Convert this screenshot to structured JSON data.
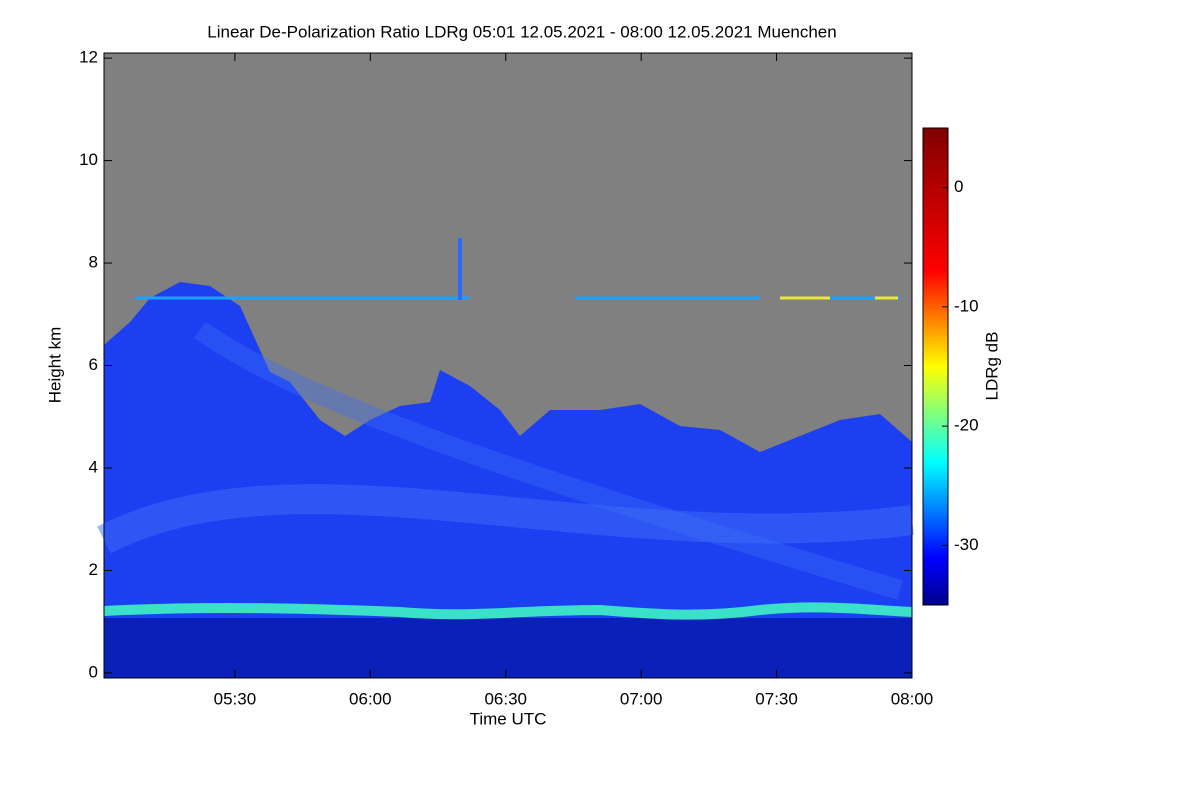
{
  "chart_data": {
    "type": "heatmap",
    "title": "Linear De-Polarization Ratio LDRg   05:01 12.05.2021 - 08:00 12.05.2021 Muenchen",
    "x_label": "Time UTC",
    "y_label": "Height km",
    "xlim": [
      5.0167,
      8.0
    ],
    "xticks": [
      {
        "value": 5.5,
        "label": "05:30"
      },
      {
        "value": 6.0,
        "label": "06:00"
      },
      {
        "value": 6.5,
        "label": "06:30"
      },
      {
        "value": 7.0,
        "label": "07:00"
      },
      {
        "value": 7.5,
        "label": "07:30"
      },
      {
        "value": 8.0,
        "label": "08:00"
      }
    ],
    "ylim": [
      -0.1,
      12.1
    ],
    "yticks": [
      0,
      2,
      4,
      6,
      8,
      10,
      12
    ],
    "colorbar": {
      "label": "LDRg dB",
      "colormap": "jet",
      "clim": [
        -35,
        5
      ],
      "ticks": [
        0,
        -10,
        -20,
        -30
      ]
    }
  }
}
